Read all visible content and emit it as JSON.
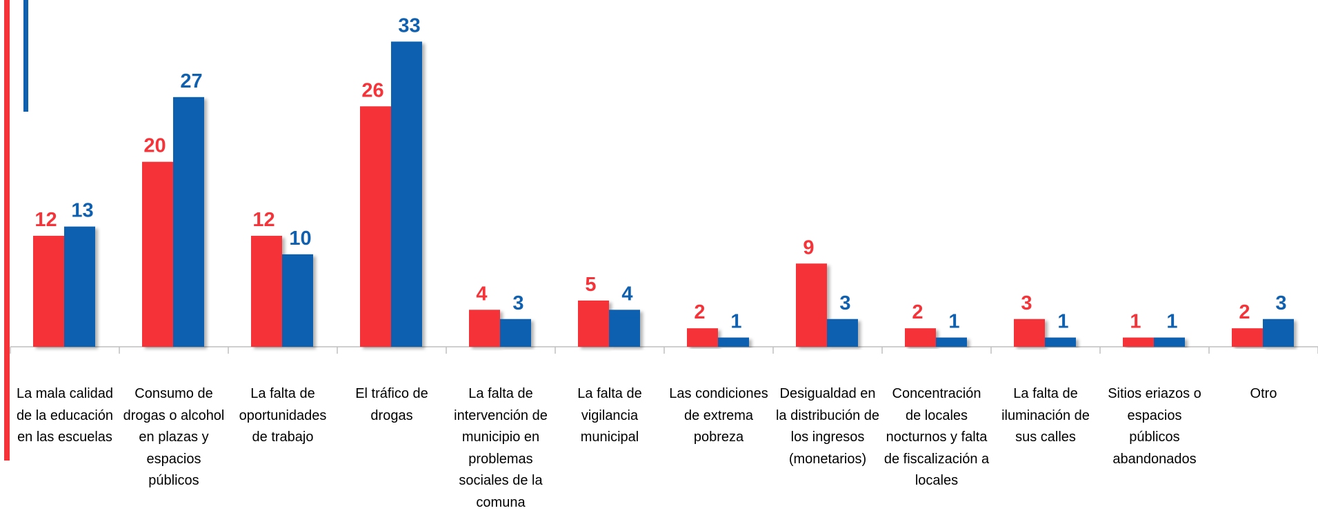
{
  "chart_data": {
    "type": "bar",
    "categories": [
      "La mala calidad de la educación en las escuelas",
      "Consumo de drogas o alcohol en plazas y espacios públicos",
      "La falta de oportunidades de trabajo",
      "El tráfico de drogas",
      "La falta de intervención de municipio en problemas sociales de la comuna",
      "La falta de vigilancia municipal",
      "Las condiciones de extrema pobreza",
      "Desigualdad en la distribución de los ingresos (monetarios)",
      "Concentración de locales nocturnos y falta de fiscalización a locales",
      "La falta de iluminación de sus calles",
      "Sitios eriazos o espacios públicos abandonados",
      "Otro"
    ],
    "series": [
      {
        "color": "#f53338",
        "values": [
          12,
          20,
          12,
          26,
          4,
          5,
          2,
          9,
          2,
          3,
          1,
          2
        ]
      },
      {
        "color": "#1060b0",
        "values": [
          13,
          27,
          10,
          33,
          3,
          4,
          1,
          3,
          1,
          1,
          1,
          3
        ]
      }
    ],
    "ylim": [
      0,
      37.5
    ]
  }
}
